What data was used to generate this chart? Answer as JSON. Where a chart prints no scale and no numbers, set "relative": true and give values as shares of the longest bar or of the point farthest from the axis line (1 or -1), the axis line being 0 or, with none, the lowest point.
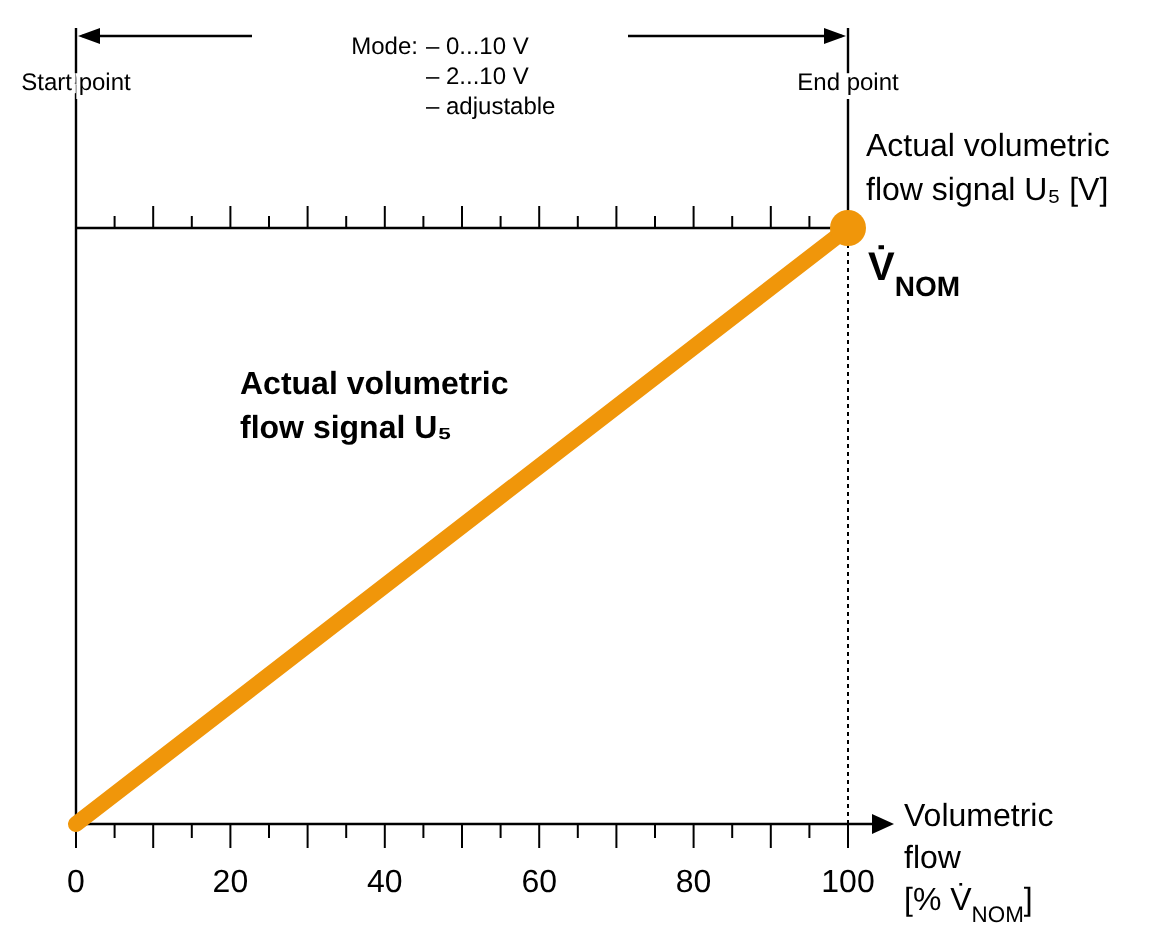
{
  "chart_data": {
    "type": "line",
    "relative": true,
    "xlabel": "Volumetric flow [% V̇$_{NOM}$]",
    "ylabel": "Actual volumetric flow signal U₅ [V]",
    "xlim": [
      0,
      100
    ],
    "xticks": [
      0,
      {
        "value": 5,
        "label": null
      },
      {
        "value": 10,
        "label": null
      },
      {
        "value": 15,
        "label": null
      },
      20,
      {
        "value": 25,
        "label": null
      },
      {
        "value": 30,
        "label": null
      },
      {
        "value": 35,
        "label": null
      },
      40,
      {
        "value": 45,
        "label": null
      },
      {
        "value": 50,
        "label": null
      },
      {
        "value": 55,
        "label": null
      },
      60,
      {
        "value": 65,
        "label": null
      },
      {
        "value": 70,
        "label": null
      },
      {
        "value": 75,
        "label": null
      },
      80,
      {
        "value": 85,
        "label": null
      },
      {
        "value": 90,
        "label": null
      },
      {
        "value": 95,
        "label": null
      },
      100
    ],
    "series": [
      {
        "color": "#f0960a",
        "values": [
          0,
          1
        ]
      },
      {
        "type": "scatter",
        "color": "#f0960a",
        "x": [
          100
        ],
        "values": [
          1
        ],
        "marker": "circle"
      }
    ],
    "ref_lines": [
      {
        "axis": "x",
        "value": 100,
        "label": "End point",
        "line_style": "dotted"
      }
    ],
    "annotations": [
      "Start point",
      "Mode:",
      "– 0...10 V",
      "– 2...10 V",
      "– adjustable",
      {
        "text": "V̇$_{NOM}$",
        "x": 100,
        "y": 1
      },
      "Actual volumetric flow signal U₅"
    ],
    "x": [
      0,
      100
    ],
    "marker": "none"
  }
}
